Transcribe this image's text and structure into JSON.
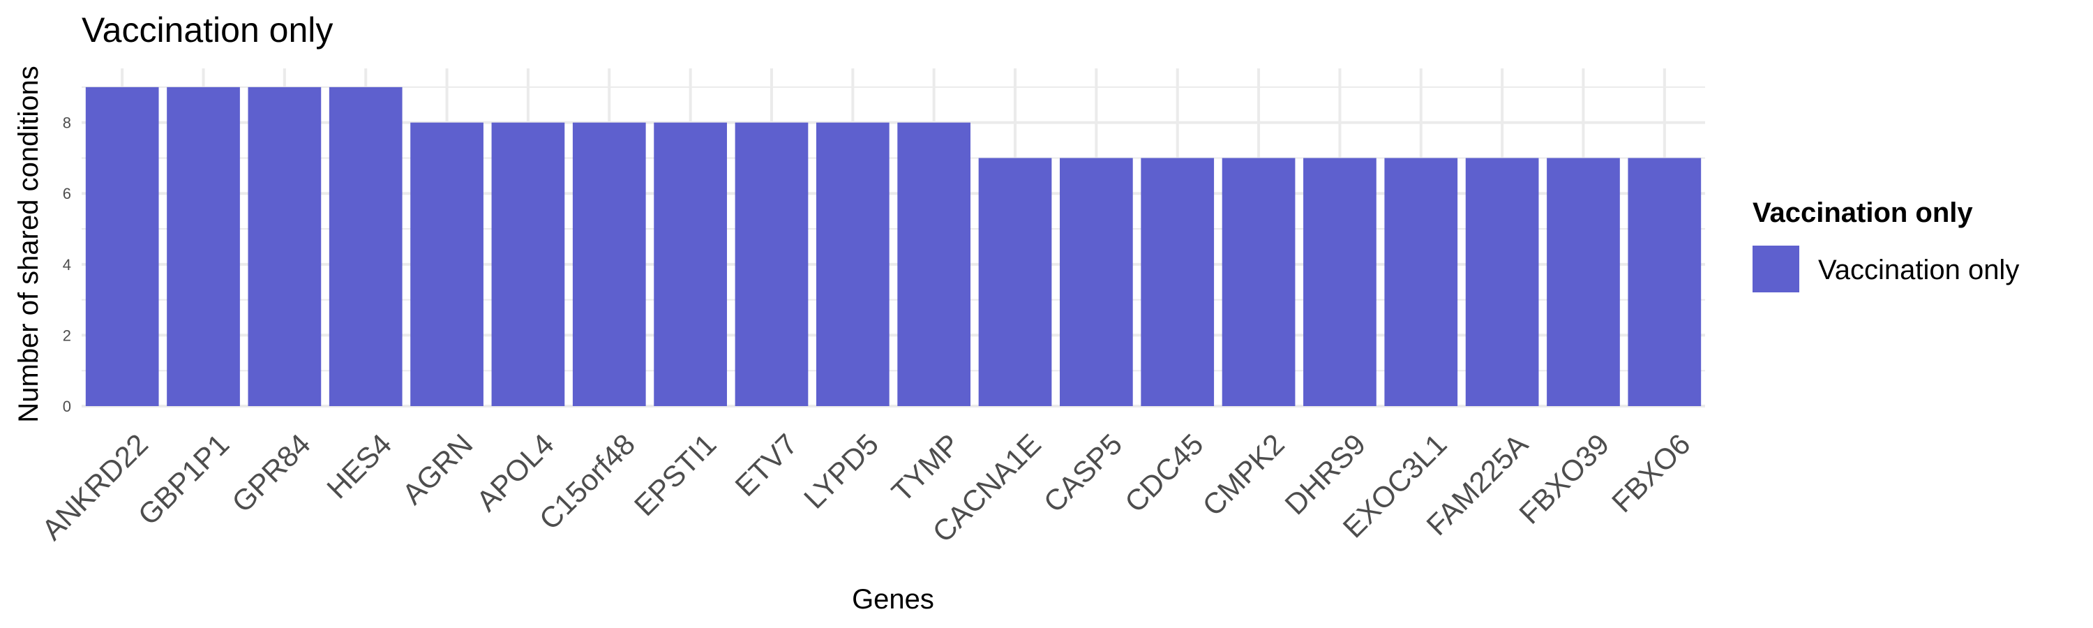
{
  "chart_data": {
    "type": "bar",
    "title": "Vaccination only",
    "xlabel": "Genes",
    "ylabel": "Number of shared conditions",
    "categories": [
      "ANKRD22",
      "GBP1P1",
      "GPR84",
      "HES4",
      "AGRN",
      "APOL4",
      "C15orf48",
      "EPSTI1",
      "ETV7",
      "LYPD5",
      "TYMP",
      "CACNA1E",
      "CASP5",
      "CDC45",
      "CMPK2",
      "DHRS9",
      "EXOC3L1",
      "FAM225A",
      "FBXO39",
      "FBXO6"
    ],
    "series": [
      {
        "name": "Vaccination only",
        "values": [
          9,
          9,
          9,
          9,
          8,
          8,
          8,
          8,
          8,
          8,
          8,
          7,
          7,
          7,
          7,
          7,
          7,
          7,
          7,
          7
        ]
      }
    ],
    "ylim": [
      0,
      9.45
    ],
    "yticks": [
      0,
      2,
      4,
      6,
      8
    ],
    "grid": true,
    "legend": {
      "title": "Vaccination only",
      "entries": [
        "Vaccination only"
      ],
      "placement": "right"
    },
    "colors": {
      "bar": "#5e60ce",
      "grid": "#ebebeb"
    }
  }
}
